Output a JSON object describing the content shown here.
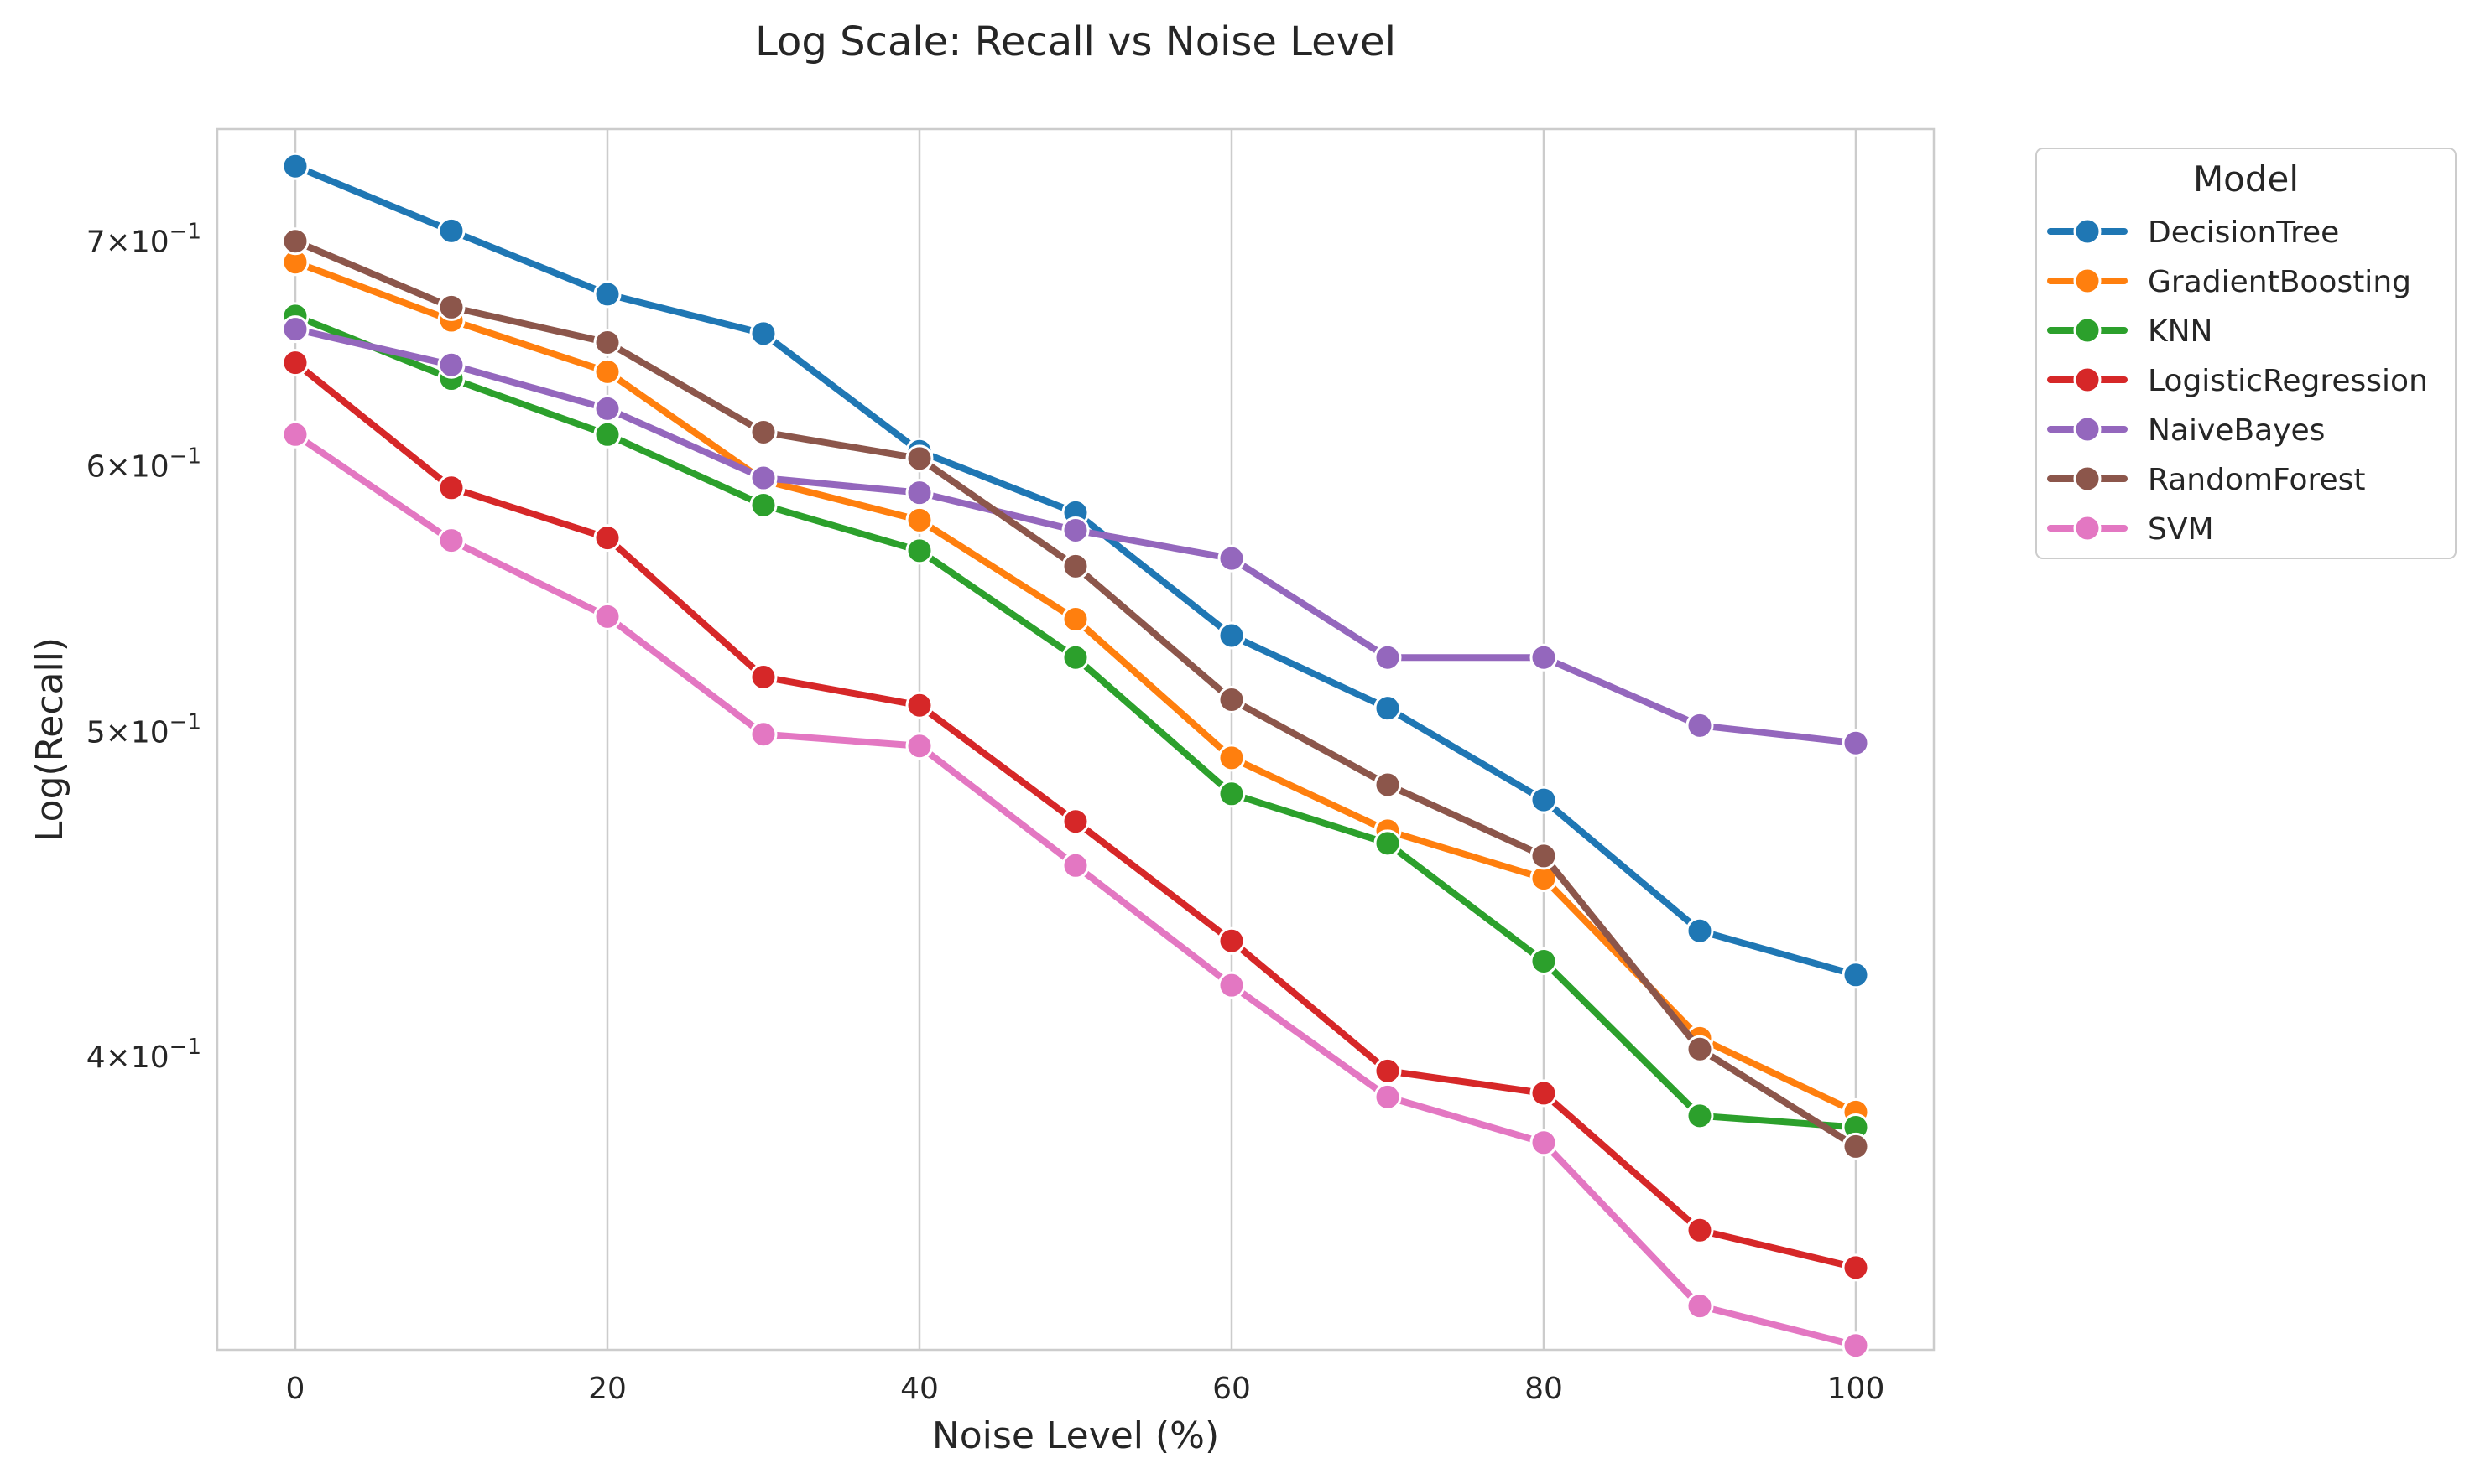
{
  "chart_data": {
    "type": "line",
    "title": "Log Scale: Recall vs Noise Level",
    "xlabel": "Noise Level (%)",
    "ylabel": "Log(Recall)",
    "x": [
      0,
      10,
      20,
      30,
      40,
      50,
      60,
      70,
      80,
      90,
      100
    ],
    "xlim": [
      -5,
      105
    ],
    "xticks": [
      0,
      20,
      40,
      60,
      80,
      100
    ],
    "xtick_labels": [
      "0",
      "20",
      "40",
      "60",
      "80",
      "100"
    ],
    "yscale": "log",
    "ylim": [
      0.327,
      0.756
    ],
    "yticks": [
      {
        "value": 0.4,
        "mantissa": "4",
        "base": "10",
        "exponent": "−1"
      },
      {
        "value": 0.5,
        "mantissa": "5",
        "base": "10",
        "exponent": "−1"
      },
      {
        "value": 0.6,
        "mantissa": "6",
        "base": "10",
        "exponent": "−1"
      },
      {
        "value": 0.7,
        "mantissa": "7",
        "base": "10",
        "exponent": "−1"
      }
    ],
    "grid": "vertical",
    "legend": {
      "title": "Model",
      "placement": "outside top-right"
    },
    "series": [
      {
        "name": "DecisionTree",
        "color": "#1f77b4",
        "values": [
          0.737,
          0.705,
          0.675,
          0.657,
          0.606,
          0.581,
          0.534,
          0.508,
          0.477,
          0.436,
          0.423
        ]
      },
      {
        "name": "GradientBoosting",
        "color": "#ff7f0e",
        "values": [
          0.69,
          0.663,
          0.64,
          0.594,
          0.578,
          0.54,
          0.491,
          0.467,
          0.452,
          0.405,
          0.385
        ]
      },
      {
        "name": "KNN",
        "color": "#2ca02c",
        "values": [
          0.665,
          0.637,
          0.613,
          0.584,
          0.566,
          0.526,
          0.479,
          0.463,
          0.427,
          0.384,
          0.381
        ]
      },
      {
        "name": "LogisticRegression",
        "color": "#d62728",
        "values": [
          0.644,
          0.591,
          0.571,
          0.519,
          0.509,
          0.47,
          0.433,
          0.396,
          0.39,
          0.355,
          0.346
        ]
      },
      {
        "name": "NaiveBayes",
        "color": "#9467bd",
        "values": [
          0.659,
          0.643,
          0.624,
          0.595,
          0.589,
          0.574,
          0.563,
          0.526,
          0.526,
          0.502,
          0.496
        ]
      },
      {
        "name": "RandomForest",
        "color": "#8c564b",
        "values": [
          0.7,
          0.669,
          0.653,
          0.614,
          0.603,
          0.56,
          0.511,
          0.482,
          0.459,
          0.402,
          0.376
        ]
      },
      {
        "name": "SVM",
        "color": "#e377c2",
        "values": [
          0.613,
          0.57,
          0.541,
          0.499,
          0.495,
          0.456,
          0.42,
          0.389,
          0.377,
          0.337,
          0.328
        ]
      }
    ]
  }
}
